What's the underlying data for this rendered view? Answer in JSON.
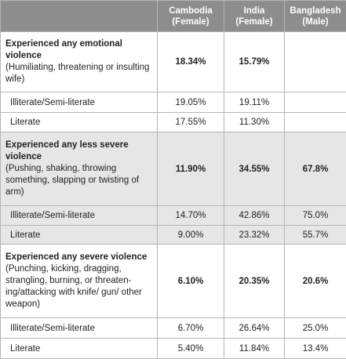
{
  "table": {
    "header": [
      {
        "country": "Cambodia",
        "group": "(Female)"
      },
      {
        "country": "India",
        "group": "(Female)"
      },
      {
        "country": "Bangladesh",
        "group": "(Male)"
      }
    ],
    "sections": [
      {
        "title": "Experienced any emotional violence",
        "description": "(Humiliating, threatening or insulting wife)",
        "values": [
          "18.34%",
          "15.79%",
          null
        ],
        "rows": [
          {
            "label": "Illiterate/Semi-literate",
            "values": [
              "19.05%",
              "19.11%",
              null
            ]
          },
          {
            "label": "Literate",
            "values": [
              "17.55%",
              "11.30%",
              null
            ]
          }
        ]
      },
      {
        "title": "Experienced any less severe violence",
        "description": "(Pushing, shaking, throwing something, slapping or twisting of arm)",
        "values": [
          "11.90%",
          "34.55%",
          "67.8%"
        ],
        "rows": [
          {
            "label": "Illiterate/Semi-literate",
            "values": [
              "14.70%",
              "42.86%",
              "75.0%"
            ]
          },
          {
            "label": "Literate",
            "values": [
              "9.00%",
              "23.32%",
              "55.7%"
            ]
          }
        ]
      },
      {
        "title": "Experienced any severe violence",
        "description": "(Punching, kicking, dragging, strangling, burning, or threaten-ing/attacking with knife/ gun/ other weapon)",
        "values": [
          "6.10%",
          "20.35%",
          "20.6%"
        ],
        "rows": [
          {
            "label": "Illiterate/Semi-literate",
            "values": [
              "6.70%",
              "26.64%",
              "25.0%"
            ]
          },
          {
            "label": "Literate",
            "values": [
              "5.40%",
              "11.84%",
              "13.4%"
            ]
          }
        ]
      }
    ]
  }
}
